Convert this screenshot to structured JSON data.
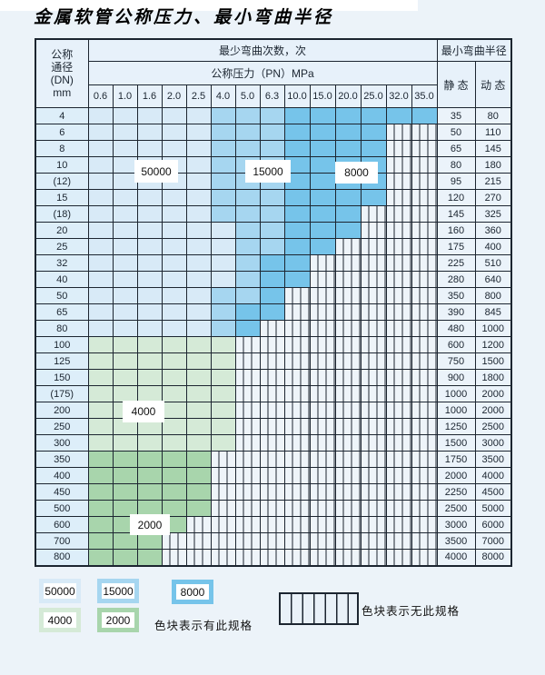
{
  "title": "金属软管公称压力、最小弯曲半径",
  "table": {
    "corner_lines": [
      "公称",
      "通径",
      "(DN)",
      "mm"
    ],
    "bend_header": "最少弯曲次数，次",
    "pressure_header": "公称压力（PN）MPa",
    "pressures": [
      "0.6",
      "1.0",
      "1.6",
      "2.0",
      "2.5",
      "4.0",
      "5.0",
      "6.3",
      "10.0",
      "15.0",
      "20.0",
      "25.0",
      "32.0",
      "35.0"
    ],
    "radius_header": "最小弯曲半径",
    "static_header": "静 态",
    "dynamic_header": "动 态",
    "rows": [
      {
        "dn": "4",
        "shades": [
          [
            "bl",
            5
          ],
          [
            "bm",
            3
          ],
          [
            "bd",
            6
          ]
        ],
        "static": "35",
        "dynamic": "80"
      },
      {
        "dn": "6",
        "shades": [
          [
            "bl",
            5
          ],
          [
            "bm",
            3
          ],
          [
            "bd",
            4
          ]
        ],
        "static": "50",
        "dynamic": "110"
      },
      {
        "dn": "8",
        "shades": [
          [
            "bl",
            5
          ],
          [
            "bm",
            3
          ],
          [
            "bd",
            4
          ]
        ],
        "static": "65",
        "dynamic": "145"
      },
      {
        "dn": "10",
        "shades": [
          [
            "bl",
            5
          ],
          [
            "bm",
            3
          ],
          [
            "bd",
            4
          ]
        ],
        "static": "80",
        "dynamic": "180"
      },
      {
        "dn": "(12)",
        "shades": [
          [
            "bl",
            5
          ],
          [
            "bm",
            3
          ],
          [
            "bd",
            4
          ]
        ],
        "static": "95",
        "dynamic": "215"
      },
      {
        "dn": "15",
        "shades": [
          [
            "bl",
            5
          ],
          [
            "bm",
            3
          ],
          [
            "bd",
            4
          ]
        ],
        "static": "120",
        "dynamic": "270"
      },
      {
        "dn": "(18)",
        "shades": [
          [
            "bl",
            5
          ],
          [
            "bm",
            3
          ],
          [
            "bd",
            3
          ]
        ],
        "static": "145",
        "dynamic": "325"
      },
      {
        "dn": "20",
        "shades": [
          [
            "bl",
            6
          ],
          [
            "bm",
            2
          ],
          [
            "bd",
            3
          ]
        ],
        "static": "160",
        "dynamic": "360"
      },
      {
        "dn": "25",
        "shades": [
          [
            "bl",
            6
          ],
          [
            "bm",
            2
          ],
          [
            "bd",
            2
          ]
        ],
        "static": "175",
        "dynamic": "400"
      },
      {
        "dn": "32",
        "shades": [
          [
            "bl",
            6
          ],
          [
            "bm",
            1
          ],
          [
            "bd",
            2
          ]
        ],
        "static": "225",
        "dynamic": "510"
      },
      {
        "dn": "40",
        "shades": [
          [
            "bl",
            6
          ],
          [
            "bm",
            1
          ],
          [
            "bd",
            2
          ]
        ],
        "static": "280",
        "dynamic": "640"
      },
      {
        "dn": "50",
        "shades": [
          [
            "bl",
            5
          ],
          [
            "bm",
            2
          ],
          [
            "bd",
            1
          ]
        ],
        "static": "350",
        "dynamic": "800"
      },
      {
        "dn": "65",
        "shades": [
          [
            "bl",
            5
          ],
          [
            "bm",
            1
          ],
          [
            "bd",
            2
          ]
        ],
        "static": "390",
        "dynamic": "845"
      },
      {
        "dn": "80",
        "shades": [
          [
            "bl",
            5
          ],
          [
            "bm",
            1
          ],
          [
            "bd",
            1
          ]
        ],
        "static": "480",
        "dynamic": "1000"
      },
      {
        "dn": "100",
        "shades": [
          [
            "gl",
            6
          ]
        ],
        "static": "600",
        "dynamic": "1200"
      },
      {
        "dn": "125",
        "shades": [
          [
            "gl",
            6
          ]
        ],
        "static": "750",
        "dynamic": "1500"
      },
      {
        "dn": "150",
        "shades": [
          [
            "gl",
            6
          ]
        ],
        "static": "900",
        "dynamic": "1800"
      },
      {
        "dn": "(175)",
        "shades": [
          [
            "gl",
            6
          ]
        ],
        "static": "1000",
        "dynamic": "2000"
      },
      {
        "dn": "200",
        "shades": [
          [
            "gl",
            6
          ]
        ],
        "static": "1000",
        "dynamic": "2000"
      },
      {
        "dn": "250",
        "shades": [
          [
            "gl",
            6
          ]
        ],
        "static": "1250",
        "dynamic": "2500"
      },
      {
        "dn": "300",
        "shades": [
          [
            "gl",
            6
          ]
        ],
        "static": "1500",
        "dynamic": "3000"
      },
      {
        "dn": "350",
        "shades": [
          [
            "gd",
            5
          ]
        ],
        "static": "1750",
        "dynamic": "3500"
      },
      {
        "dn": "400",
        "shades": [
          [
            "gd",
            5
          ]
        ],
        "static": "2000",
        "dynamic": "4000"
      },
      {
        "dn": "450",
        "shades": [
          [
            "gd",
            5
          ]
        ],
        "static": "2250",
        "dynamic": "4500"
      },
      {
        "dn": "500",
        "shades": [
          [
            "gd",
            5
          ]
        ],
        "static": "2500",
        "dynamic": "5000"
      },
      {
        "dn": "600",
        "shades": [
          [
            "gd",
            4
          ]
        ],
        "static": "3000",
        "dynamic": "6000"
      },
      {
        "dn": "700",
        "shades": [
          [
            "gd",
            3
          ]
        ],
        "static": "3500",
        "dynamic": "7000"
      },
      {
        "dn": "800",
        "shades": [
          [
            "gd",
            3
          ]
        ],
        "static": "4000",
        "dynamic": "8000"
      }
    ]
  },
  "zone_labels": {
    "z50000": "50000",
    "z15000": "15000",
    "z8000": "8000",
    "z4000": "4000",
    "z2000": "2000"
  },
  "legend": {
    "items": [
      {
        "label": "50000",
        "shade": "bl"
      },
      {
        "label": "15000",
        "shade": "bm"
      },
      {
        "label": "8000",
        "shade": "bd"
      },
      {
        "label": "4000",
        "shade": "gl"
      },
      {
        "label": "2000",
        "shade": "gd"
      }
    ],
    "has_spec_text": "色块表示有此规格",
    "no_spec_text": "色块表示无此规格"
  },
  "colors": {
    "blue_light": "#d8eaf7",
    "blue_medium": "#a6d6f0",
    "blue_dark": "#76c4ea",
    "green_light": "#d5ead7",
    "green_dark": "#a8d5ac",
    "hatch_bg": "#eef4f9",
    "grid": "#1c2530",
    "page_bg": "#ecf3f9"
  }
}
